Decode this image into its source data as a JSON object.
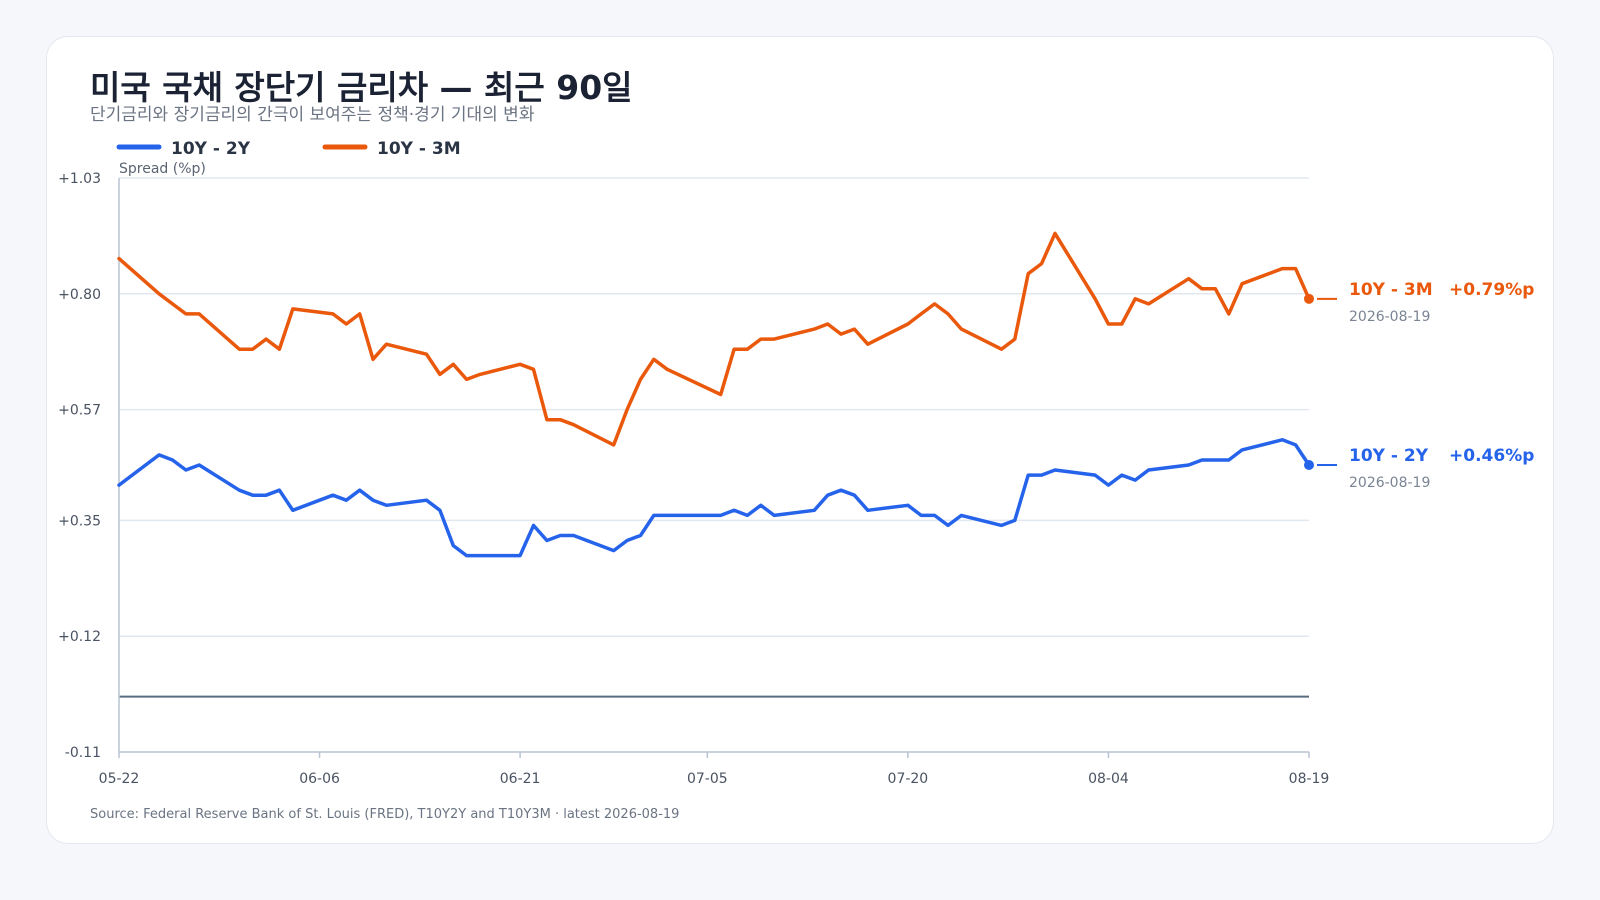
{
  "title": "미국 국채 장단기 금리차 — 최근 90일",
  "subtitle": "단기금리와 장기금리의 간극이 보여주는 정책·경기 기대의 변화",
  "source": "Source: Federal Reserve Bank of St. Louis (FRED), T10Y2Y and T10Y3M · latest 2026-08-19",
  "colors": {
    "series_10y2y": "#2563eb",
    "series_10y3m": "#ea580c",
    "zero_line": "#5b6b80",
    "grid": "#e2e8f0",
    "axis": "#b8c4d4"
  },
  "chart_data": {
    "type": "line",
    "ylabel": "Spread (%p)",
    "ylim": [
      -0.11,
      1.03
    ],
    "y_ticks": [
      "+1.03",
      "+0.80",
      "+0.57",
      "+0.35",
      "+0.12",
      "-0.11"
    ],
    "y_tick_values": [
      1.03,
      0.8,
      0.57,
      0.35,
      0.12,
      -0.11
    ],
    "xlim": [
      "05-22",
      "08-19"
    ],
    "x_ticks": [
      "05-22",
      "06-06",
      "06-21",
      "07-05",
      "07-20",
      "08-04",
      "08-19"
    ],
    "grid": true,
    "reference_line": 0,
    "legend_placement": "top-left",
    "series": [
      {
        "name": "10Y - 2Y",
        "color": "#2563eb",
        "end_value_label": "+0.46%p",
        "end_date": "2026-08-19",
        "points": [
          {
            "x": "05-22",
            "y": 0.42
          },
          {
            "x": "05-25",
            "y": 0.48
          },
          {
            "x": "05-26",
            "y": 0.47
          },
          {
            "x": "05-27",
            "y": 0.45
          },
          {
            "x": "05-28",
            "y": 0.46
          },
          {
            "x": "05-31",
            "y": 0.41
          },
          {
            "x": "06-01",
            "y": 0.4
          },
          {
            "x": "06-02",
            "y": 0.4
          },
          {
            "x": "06-03",
            "y": 0.41
          },
          {
            "x": "06-04",
            "y": 0.37
          },
          {
            "x": "06-07",
            "y": 0.4
          },
          {
            "x": "06-08",
            "y": 0.39
          },
          {
            "x": "06-09",
            "y": 0.41
          },
          {
            "x": "06-10",
            "y": 0.39
          },
          {
            "x": "06-11",
            "y": 0.38
          },
          {
            "x": "06-14",
            "y": 0.39
          },
          {
            "x": "06-15",
            "y": 0.37
          },
          {
            "x": "06-16",
            "y": 0.3
          },
          {
            "x": "06-17",
            "y": 0.28
          },
          {
            "x": "06-18",
            "y": 0.28
          },
          {
            "x": "06-21",
            "y": 0.28
          },
          {
            "x": "06-22",
            "y": 0.34
          },
          {
            "x": "06-23",
            "y": 0.31
          },
          {
            "x": "06-24",
            "y": 0.32
          },
          {
            "x": "06-25",
            "y": 0.32
          },
          {
            "x": "06-28",
            "y": 0.29
          },
          {
            "x": "06-29",
            "y": 0.31
          },
          {
            "x": "06-30",
            "y": 0.32
          },
          {
            "x": "07-01",
            "y": 0.36
          },
          {
            "x": "07-02",
            "y": 0.36
          },
          {
            "x": "07-06",
            "y": 0.36
          },
          {
            "x": "07-07",
            "y": 0.37
          },
          {
            "x": "07-08",
            "y": 0.36
          },
          {
            "x": "07-09",
            "y": 0.38
          },
          {
            "x": "07-10",
            "y": 0.36
          },
          {
            "x": "07-13",
            "y": 0.37
          },
          {
            "x": "07-14",
            "y": 0.4
          },
          {
            "x": "07-15",
            "y": 0.41
          },
          {
            "x": "07-16",
            "y": 0.4
          },
          {
            "x": "07-17",
            "y": 0.37
          },
          {
            "x": "07-20",
            "y": 0.38
          },
          {
            "x": "07-21",
            "y": 0.36
          },
          {
            "x": "07-22",
            "y": 0.36
          },
          {
            "x": "07-23",
            "y": 0.34
          },
          {
            "x": "07-24",
            "y": 0.36
          },
          {
            "x": "07-27",
            "y": 0.34
          },
          {
            "x": "07-28",
            "y": 0.35
          },
          {
            "x": "07-29",
            "y": 0.44
          },
          {
            "x": "07-30",
            "y": 0.44
          },
          {
            "x": "07-31",
            "y": 0.45
          },
          {
            "x": "08-03",
            "y": 0.44
          },
          {
            "x": "08-04",
            "y": 0.42
          },
          {
            "x": "08-05",
            "y": 0.44
          },
          {
            "x": "08-06",
            "y": 0.43
          },
          {
            "x": "08-07",
            "y": 0.45
          },
          {
            "x": "08-10",
            "y": 0.46
          },
          {
            "x": "08-11",
            "y": 0.47
          },
          {
            "x": "08-12",
            "y": 0.47
          },
          {
            "x": "08-13",
            "y": 0.47
          },
          {
            "x": "08-14",
            "y": 0.49
          },
          {
            "x": "08-17",
            "y": 0.51
          },
          {
            "x": "08-18",
            "y": 0.5
          },
          {
            "x": "08-19",
            "y": 0.46
          }
        ]
      },
      {
        "name": "10Y - 3M",
        "color": "#ea580c",
        "end_value_label": "+0.79%p",
        "end_date": "2026-08-19",
        "points": [
          {
            "x": "05-22",
            "y": 0.87
          },
          {
            "x": "05-25",
            "y": 0.8
          },
          {
            "x": "05-26",
            "y": 0.78
          },
          {
            "x": "05-27",
            "y": 0.76
          },
          {
            "x": "05-28",
            "y": 0.76
          },
          {
            "x": "05-31",
            "y": 0.69
          },
          {
            "x": "06-01",
            "y": 0.69
          },
          {
            "x": "06-02",
            "y": 0.71
          },
          {
            "x": "06-03",
            "y": 0.69
          },
          {
            "x": "06-04",
            "y": 0.77
          },
          {
            "x": "06-07",
            "y": 0.76
          },
          {
            "x": "06-08",
            "y": 0.74
          },
          {
            "x": "06-09",
            "y": 0.76
          },
          {
            "x": "06-10",
            "y": 0.67
          },
          {
            "x": "06-11",
            "y": 0.7
          },
          {
            "x": "06-14",
            "y": 0.68
          },
          {
            "x": "06-15",
            "y": 0.64
          },
          {
            "x": "06-16",
            "y": 0.66
          },
          {
            "x": "06-17",
            "y": 0.63
          },
          {
            "x": "06-18",
            "y": 0.64
          },
          {
            "x": "06-21",
            "y": 0.66
          },
          {
            "x": "06-22",
            "y": 0.65
          },
          {
            "x": "06-23",
            "y": 0.55
          },
          {
            "x": "06-24",
            "y": 0.55
          },
          {
            "x": "06-25",
            "y": 0.54
          },
          {
            "x": "06-28",
            "y": 0.5
          },
          {
            "x": "06-29",
            "y": 0.57
          },
          {
            "x": "06-30",
            "y": 0.63
          },
          {
            "x": "07-01",
            "y": 0.67
          },
          {
            "x": "07-02",
            "y": 0.65
          },
          {
            "x": "07-06",
            "y": 0.6
          },
          {
            "x": "07-07",
            "y": 0.69
          },
          {
            "x": "07-08",
            "y": 0.69
          },
          {
            "x": "07-09",
            "y": 0.71
          },
          {
            "x": "07-10",
            "y": 0.71
          },
          {
            "x": "07-13",
            "y": 0.73
          },
          {
            "x": "07-14",
            "y": 0.74
          },
          {
            "x": "07-15",
            "y": 0.72
          },
          {
            "x": "07-16",
            "y": 0.73
          },
          {
            "x": "07-17",
            "y": 0.7
          },
          {
            "x": "07-20",
            "y": 0.74
          },
          {
            "x": "07-21",
            "y": 0.76
          },
          {
            "x": "07-22",
            "y": 0.78
          },
          {
            "x": "07-23",
            "y": 0.76
          },
          {
            "x": "07-24",
            "y": 0.73
          },
          {
            "x": "07-27",
            "y": 0.69
          },
          {
            "x": "07-28",
            "y": 0.71
          },
          {
            "x": "07-29",
            "y": 0.84
          },
          {
            "x": "07-30",
            "y": 0.86
          },
          {
            "x": "07-31",
            "y": 0.92
          },
          {
            "x": "08-03",
            "y": 0.79
          },
          {
            "x": "08-04",
            "y": 0.74
          },
          {
            "x": "08-05",
            "y": 0.74
          },
          {
            "x": "08-06",
            "y": 0.79
          },
          {
            "x": "08-07",
            "y": 0.78
          },
          {
            "x": "08-10",
            "y": 0.83
          },
          {
            "x": "08-11",
            "y": 0.81
          },
          {
            "x": "08-12",
            "y": 0.81
          },
          {
            "x": "08-13",
            "y": 0.76
          },
          {
            "x": "08-14",
            "y": 0.82
          },
          {
            "x": "08-17",
            "y": 0.85
          },
          {
            "x": "08-18",
            "y": 0.85
          },
          {
            "x": "08-19",
            "y": 0.79
          }
        ]
      }
    ]
  }
}
